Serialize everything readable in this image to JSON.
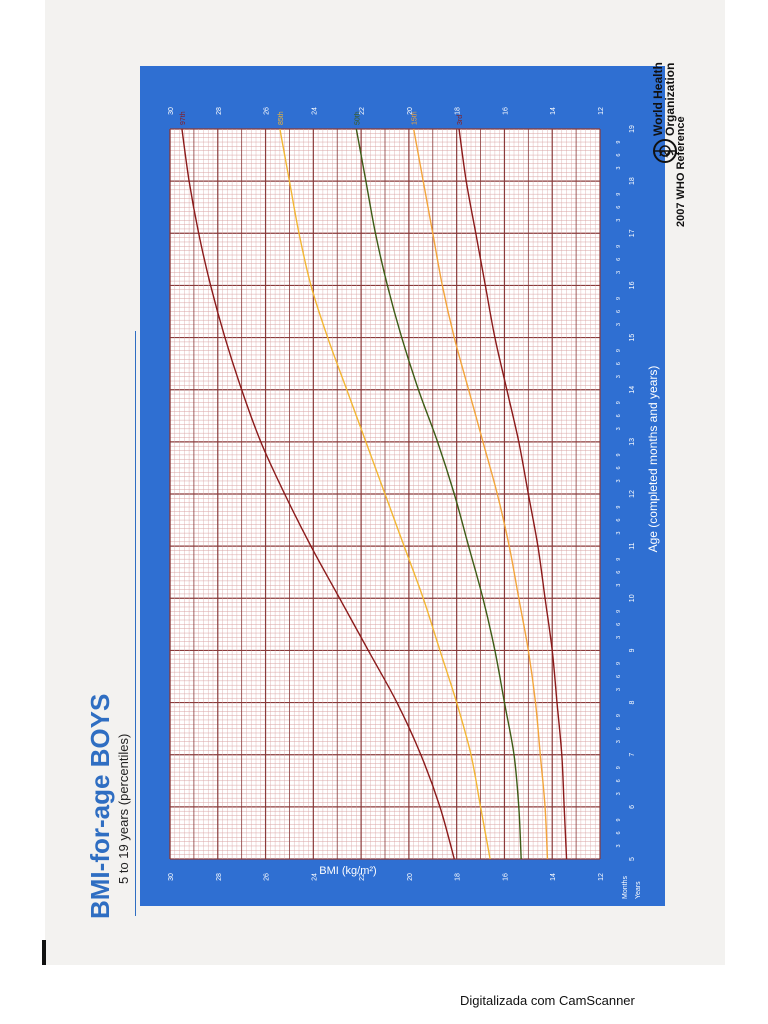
{
  "footer": "Digitalizada com CamScanner",
  "organization": {
    "name_line1": "World Health",
    "name_line2": "Organization",
    "reference": "2007  WHO Reference"
  },
  "colors": {
    "panel": "#2f6fd2",
    "grid_major": "#8a3a3a",
    "grid_minor": "#d9a3a3",
    "p97": "#8b1a1a",
    "p85": "#f2b632",
    "p50": "#3d5c16",
    "p15": "#f2a43a",
    "p3": "#8b1a1a"
  },
  "chart_data": {
    "type": "line",
    "title": "BMI-for-age  BOYS",
    "subtitle": "5 to 19 years (percentiles)",
    "xlabel": "Age (completed months and years)",
    "ylabel": "BMI (kg/m²)",
    "axis_row_labels": {
      "months": "Months",
      "years": "Years"
    },
    "xlim": [
      5,
      19
    ],
    "ylim": [
      12,
      30
    ],
    "x_ticks": [
      5,
      6,
      7,
      8,
      9,
      10,
      11,
      12,
      13,
      14,
      15,
      16,
      17,
      18,
      19
    ],
    "month_ticks": [
      3,
      6,
      9
    ],
    "y_ticks": [
      12,
      14,
      16,
      18,
      20,
      22,
      24,
      26,
      28,
      30
    ],
    "x": [
      5,
      6,
      7,
      8,
      9,
      10,
      11,
      12,
      13,
      14,
      15,
      16,
      17,
      18,
      19
    ],
    "series": [
      {
        "name": "97th",
        "values": [
          18.1,
          18.7,
          19.5,
          20.5,
          21.7,
          22.9,
          24.1,
          25.2,
          26.2,
          27.0,
          27.7,
          28.3,
          28.8,
          29.2,
          29.5
        ]
      },
      {
        "name": "85th",
        "values": [
          16.6,
          17.0,
          17.4,
          18.0,
          18.7,
          19.4,
          20.2,
          21.0,
          21.8,
          22.6,
          23.4,
          24.1,
          24.6,
          25.0,
          25.4
        ]
      },
      {
        "name": "50th",
        "values": [
          15.3,
          15.4,
          15.6,
          16.0,
          16.4,
          16.9,
          17.5,
          18.1,
          18.8,
          19.6,
          20.3,
          20.9,
          21.4,
          21.8,
          22.2
        ]
      },
      {
        "name": "15th",
        "values": [
          14.2,
          14.3,
          14.5,
          14.7,
          15.0,
          15.4,
          15.8,
          16.3,
          16.9,
          17.5,
          18.1,
          18.6,
          19.0,
          19.4,
          19.8
        ]
      },
      {
        "name": "3rd",
        "values": [
          13.4,
          13.5,
          13.6,
          13.8,
          14.0,
          14.3,
          14.6,
          15.0,
          15.4,
          15.9,
          16.4,
          16.8,
          17.2,
          17.6,
          17.9
        ]
      }
    ]
  }
}
